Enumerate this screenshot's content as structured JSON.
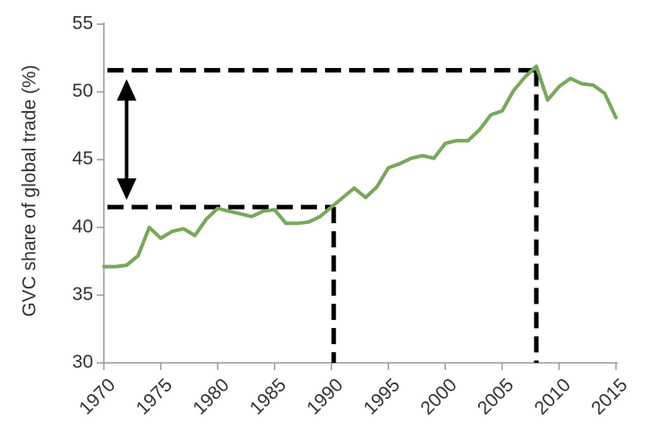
{
  "chart_data": {
    "type": "line",
    "title": "",
    "xlabel": "",
    "ylabel": "GVC share of global trade (%)",
    "xlim": [
      1970,
      2015
    ],
    "ylim": [
      30,
      55
    ],
    "x_ticks": [
      1970,
      1975,
      1980,
      1985,
      1990,
      1995,
      2000,
      2005,
      2010,
      2015
    ],
    "y_ticks": [
      30,
      35,
      40,
      45,
      50,
      55
    ],
    "grid": false,
    "legend": "none",
    "series": [
      {
        "color": "#77a95a",
        "x": [
          1970,
          1971,
          1972,
          1973,
          1974,
          1975,
          1976,
          1977,
          1978,
          1979,
          1980,
          1981,
          1982,
          1983,
          1984,
          1985,
          1986,
          1987,
          1988,
          1989,
          1990,
          1991,
          1992,
          1993,
          1994,
          1995,
          1996,
          1997,
          1998,
          1999,
          2000,
          2001,
          2002,
          2003,
          2004,
          2005,
          2006,
          2007,
          2008,
          2009,
          2010,
          2011,
          2012,
          2013,
          2014,
          2015
        ],
        "y": [
          37.1,
          37.1,
          37.2,
          37.9,
          40.0,
          39.2,
          39.7,
          39.9,
          39.4,
          40.6,
          41.4,
          41.2,
          41.0,
          40.8,
          41.2,
          41.3,
          40.3,
          40.3,
          40.4,
          40.8,
          41.5,
          42.2,
          42.9,
          42.2,
          43.0,
          44.4,
          44.7,
          45.1,
          45.3,
          45.1,
          46.2,
          46.4,
          46.4,
          47.2,
          48.3,
          48.6,
          50.1,
          51.1,
          51.9,
          49.4,
          50.4,
          51.0,
          50.6,
          50.5,
          49.9,
          48.1
        ]
      }
    ],
    "annotations": {
      "reference_lines": [
        {
          "x": 1990.2,
          "y": 41.5
        },
        {
          "x": 2008.0,
          "y": 51.6
        }
      ],
      "double_arrow": {
        "x": 1972.0,
        "y_from": 41.5,
        "y_to": 51.6
      }
    },
    "colors": {
      "line": "#77a95a",
      "axis": "#999999",
      "reference": "#000000"
    }
  }
}
